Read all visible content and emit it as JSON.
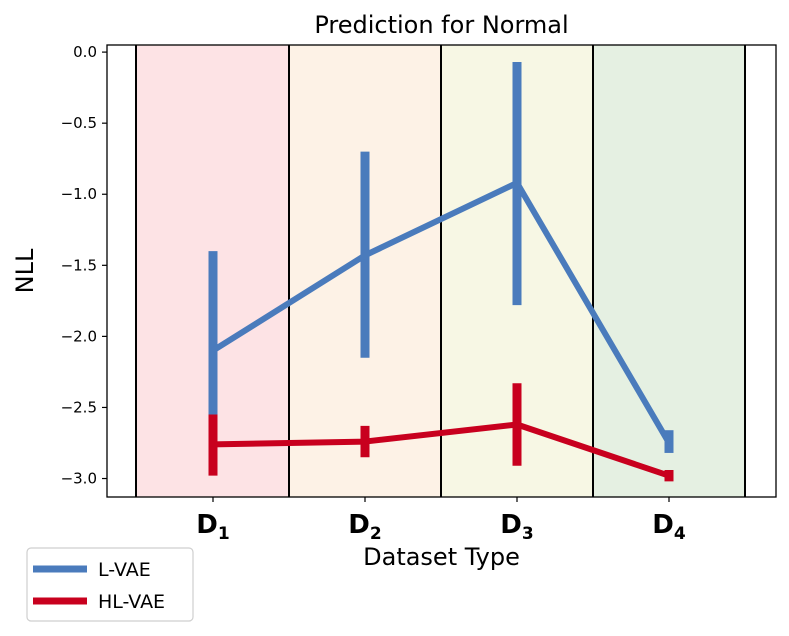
{
  "chart_data": {
    "type": "line",
    "title": "Prediction for Normal",
    "xlabel": "Dataset Type",
    "ylabel": "NLL",
    "categories": [
      {
        "main": "D",
        "sub": "1"
      },
      {
        "main": "D",
        "sub": "2"
      },
      {
        "main": "D",
        "sub": "3"
      },
      {
        "main": "D",
        "sub": "4"
      }
    ],
    "ylim": [
      -3.13,
      0.05
    ],
    "yticks": [
      0.0,
      -0.5,
      -1.0,
      -1.5,
      -2.0,
      -2.5,
      -3.0
    ],
    "ytick_labels": [
      "0.0",
      "−0.5",
      "−1.0",
      "−1.5",
      "−2.0",
      "−2.5",
      "−3.0"
    ],
    "region_colors": [
      "#fde3e5",
      "#fdf2e6",
      "#f7f7e4",
      "#e5f0e2"
    ],
    "series": [
      {
        "name": "L-VAE",
        "color": "#4a7bbc",
        "values": [
          -2.1,
          -1.43,
          -0.92,
          -2.75
        ],
        "err_low": [
          -2.55,
          -2.15,
          -1.78,
          -2.82
        ],
        "err_high": [
          -1.4,
          -0.7,
          -0.07,
          -2.66
        ]
      },
      {
        "name": "HL-VAE",
        "color": "#c8001e",
        "values": [
          -2.76,
          -2.74,
          -2.62,
          -2.98
        ],
        "err_low": [
          -2.98,
          -2.85,
          -2.91,
          -3.02
        ],
        "err_high": [
          -2.55,
          -2.63,
          -2.33,
          -2.94
        ]
      }
    ],
    "legend_position": "bottom-left"
  }
}
